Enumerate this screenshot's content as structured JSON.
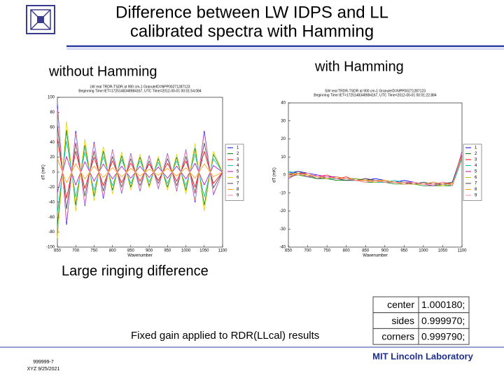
{
  "slide": {
    "title_lines": [
      "Difference between LW IDPS and LL",
      "calibrated spectra with Hamming"
    ],
    "left_heading": "without Hamming",
    "right_heading": "with Hamming",
    "note": "Large ringing difference",
    "caption": "Fixed gain applied to RDR(LLcal) results",
    "footer_id": "999999-7",
    "footer_date": "XYZ 9/25/2021",
    "footer_org": "MIT Lincoln Laboratory"
  },
  "table": {
    "rows": [
      [
        "center",
        "1.000180;"
      ],
      [
        "sides",
        "0.999970;"
      ],
      [
        "corners",
        "0.999790;"
      ]
    ]
  },
  "chart_data": [
    {
      "type": "line",
      "header": [
        "LW real TRDR-TSDR at 900 cm-1 GranuleID=NPP00271287123",
        "Beginning Time IET=1725148348984167, UTC Time=2012-00-01 00:01:54.084"
      ],
      "xlabel": "Wavenumber",
      "ylabel": "dT (mK)",
      "x": [
        650,
        675,
        700,
        725,
        750,
        775,
        800,
        825,
        850,
        875,
        900,
        925,
        950,
        975,
        1000,
        1025,
        1050,
        1075,
        1100
      ],
      "xlim": [
        650,
        1100
      ],
      "xticks": [
        650,
        700,
        750,
        800,
        850,
        900,
        950,
        1000,
        1050,
        1100
      ],
      "ylim": [
        -100,
        100
      ],
      "yticks": [
        -100,
        -80,
        -60,
        -40,
        -20,
        0,
        20,
        40,
        60,
        80,
        100
      ],
      "series": [
        {
          "name": "1",
          "color": "#0000ff",
          "values": [
            90,
            -70,
            55,
            -45,
            40,
            -35,
            30,
            -28,
            25,
            -25,
            22,
            -22,
            25,
            -25,
            30,
            -40,
            55,
            -30,
            0
          ]
        },
        {
          "name": "2",
          "color": "#008000",
          "values": [
            -72,
            56,
            -44,
            36,
            -32,
            28,
            -24,
            22,
            -20,
            20,
            -18,
            18,
            -20,
            20,
            -24,
            32,
            -44,
            24,
            0
          ]
        },
        {
          "name": "3",
          "color": "#ff0000",
          "values": [
            45,
            -35,
            28,
            -22,
            20,
            -18,
            15,
            -14,
            12,
            -12,
            11,
            -11,
            12,
            -12,
            15,
            -20,
            28,
            -15,
            0
          ]
        },
        {
          "name": "4",
          "color": "#00bfbf",
          "values": [
            -54,
            42,
            -33,
            27,
            -24,
            21,
            -18,
            17,
            -15,
            15,
            -13,
            13,
            -15,
            15,
            -18,
            24,
            -33,
            18,
            0
          ]
        },
        {
          "name": "5",
          "color": "#bf00bf",
          "values": [
            -27,
            21,
            -17,
            14,
            -12,
            11,
            -9,
            8,
            -8,
            8,
            -7,
            7,
            -8,
            8,
            -9,
            12,
            -17,
            9,
            0
          ]
        },
        {
          "name": "6",
          "color": "#e6d200",
          "values": [
            -88,
            68,
            -52,
            44,
            -38,
            34,
            -29,
            27,
            -24,
            24,
            -21,
            21,
            -24,
            24,
            -29,
            38,
            -52,
            28,
            0
          ]
        },
        {
          "name": "7",
          "color": "#404040",
          "values": [
            63,
            -49,
            39,
            -32,
            28,
            -25,
            21,
            -20,
            18,
            -18,
            15,
            -15,
            18,
            -18,
            21,
            -28,
            39,
            -21,
            0
          ]
        },
        {
          "name": "8",
          "color": "#ff9900",
          "values": [
            18,
            -14,
            11,
            -9,
            8,
            -7,
            6,
            -6,
            5,
            -5,
            4,
            -4,
            5,
            -5,
            6,
            -8,
            11,
            -6,
            0
          ]
        },
        {
          "name": "9",
          "color": "#ff88aa",
          "values": [
            85,
            -66,
            52,
            -43,
            38,
            -33,
            29,
            -27,
            24,
            -24,
            21,
            -21,
            24,
            -24,
            29,
            -38,
            52,
            -29,
            0
          ]
        }
      ]
    },
    {
      "type": "line",
      "header": [
        "SW real TRDR-TSDR at 900 cm-1 GranuleID=NPP00271287123",
        "Beginning Time IET=1725148348984167, UTC Time=2012-00-01 00:01:22.884"
      ],
      "xlabel": "Wavenumber",
      "ylabel": "dT (mK)",
      "x": [
        650,
        675,
        700,
        725,
        750,
        775,
        800,
        825,
        850,
        875,
        900,
        925,
        950,
        975,
        1000,
        1025,
        1050,
        1075,
        1100
      ],
      "xlim": [
        650,
        1100
      ],
      "xticks": [
        650,
        700,
        750,
        800,
        850,
        900,
        950,
        1000,
        1050,
        1100
      ],
      "ylim": [
        -40,
        40
      ],
      "yticks": [
        -40,
        -30,
        -20,
        -10,
        0,
        10,
        20,
        30,
        40
      ],
      "series": [
        {
          "name": "1",
          "color": "#0000ff",
          "values": [
            1,
            2,
            1,
            0,
            -1,
            -1,
            -2,
            -2,
            -3,
            -2,
            -3,
            -4,
            -3,
            -4,
            -5,
            -4,
            -5,
            -4,
            12
          ]
        },
        {
          "name": "2",
          "color": "#008000",
          "values": [
            -1,
            0,
            -1,
            -2,
            -2,
            -3,
            -3,
            -3,
            -4,
            -4,
            -4,
            -5,
            -5,
            -5,
            -6,
            -6,
            -6,
            -6,
            10
          ]
        },
        {
          "name": "3",
          "color": "#ff0000",
          "values": [
            0,
            1,
            1,
            -1,
            0,
            -2,
            -1,
            -3,
            -2,
            -3,
            -3,
            -4,
            -4,
            -4,
            -5,
            -5,
            -4,
            -5,
            11
          ]
        },
        {
          "name": "4",
          "color": "#00bfbf",
          "values": [
            2,
            1,
            0,
            -1,
            -2,
            -2,
            -3,
            -2,
            -3,
            -4,
            -4,
            -3,
            -4,
            -5,
            -4,
            -5,
            -5,
            -6,
            9
          ]
        },
        {
          "name": "5",
          "color": "#bf00bf",
          "values": [
            -2,
            1,
            -1,
            0,
            -1,
            -1,
            -2,
            -3,
            -3,
            -3,
            -4,
            -4,
            -5,
            -4,
            -5,
            -6,
            -5,
            -5,
            13
          ]
        },
        {
          "name": "6",
          "color": "#bfbf00",
          "values": [
            1,
            0,
            0,
            -1,
            -1,
            -2,
            -2,
            -2,
            -3,
            -3,
            -3,
            -4,
            -4,
            -5,
            -5,
            -5,
            -6,
            -5,
            12
          ]
        },
        {
          "name": "7",
          "color": "#404040",
          "values": [
            0,
            2,
            0,
            -2,
            -1,
            -2,
            -3,
            -3,
            -2,
            -3,
            -4,
            -4,
            -4,
            -5,
            -4,
            -5,
            -5,
            -4,
            11
          ]
        },
        {
          "name": "8",
          "color": "#ff9900",
          "values": [
            -1,
            1,
            0,
            -1,
            -2,
            -1,
            -2,
            -3,
            -3,
            -4,
            -3,
            -4,
            -5,
            -5,
            -5,
            -4,
            -5,
            -5,
            10
          ]
        },
        {
          "name": "9",
          "color": "#ff88aa",
          "values": [
            0,
            0,
            1,
            -1,
            -1,
            -2,
            -2,
            -3,
            -4,
            -3,
            -4,
            -4,
            -4,
            -4,
            -5,
            -5,
            -4,
            -6,
            12
          ]
        }
      ]
    }
  ]
}
